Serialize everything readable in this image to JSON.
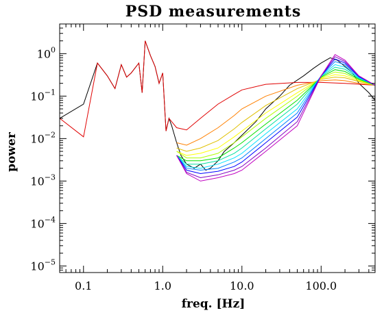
{
  "chart_data": {
    "type": "line",
    "title": "PSD measurements",
    "xlabel": "freq. [Hz]",
    "ylabel": "power",
    "xscale": "log",
    "yscale": "log",
    "xlim": [
      0.05,
      480
    ],
    "ylim": [
      7e-06,
      5
    ],
    "x_ticks": [
      {
        "value": 0.1,
        "label": "0.1"
      },
      {
        "value": 1.0,
        "label": "1.0"
      },
      {
        "value": 10.0,
        "label": "10.0"
      },
      {
        "value": 100.0,
        "label": "100.0"
      }
    ],
    "y_ticks": [
      {
        "value": 1,
        "base": "10",
        "exp": "0"
      },
      {
        "value": 0.1,
        "base": "10",
        "exp": "−1"
      },
      {
        "value": 0.01,
        "base": "10",
        "exp": "−2"
      },
      {
        "value": 0.001,
        "base": "10",
        "exp": "−3"
      },
      {
        "value": 0.0001,
        "base": "10",
        "exp": "−4"
      },
      {
        "value": 1e-05,
        "base": "10",
        "exp": "−5"
      }
    ],
    "grid": false,
    "series": [
      {
        "kind": "measured",
        "color": "#000000",
        "x": [
          0.05,
          0.1,
          0.15,
          0.2,
          0.25,
          0.3,
          0.35,
          0.4,
          0.5,
          0.55,
          0.6,
          0.7,
          0.8,
          0.9,
          1.0,
          1.1,
          1.2,
          1.3,
          1.5,
          1.7,
          2.0,
          2.5,
          3.0,
          3.5,
          4.0,
          5.0,
          6.0,
          8.0,
          10,
          15,
          20,
          30,
          40,
          60,
          80,
          100,
          130,
          160,
          200,
          250,
          300,
          400,
          480
        ],
        "y": [
          0.03,
          0.065,
          0.6,
          0.3,
          0.15,
          0.55,
          0.28,
          0.35,
          0.6,
          0.12,
          2.0,
          0.9,
          0.5,
          0.2,
          0.35,
          0.015,
          0.03,
          0.02,
          0.008,
          0.004,
          0.0025,
          0.002,
          0.0025,
          0.0018,
          0.002,
          0.003,
          0.005,
          0.008,
          0.012,
          0.025,
          0.05,
          0.1,
          0.18,
          0.3,
          0.45,
          0.6,
          0.8,
          0.7,
          0.5,
          0.35,
          0.2,
          0.12,
          0.08
        ]
      },
      {
        "kind": "model",
        "color": "#e00000",
        "x": [
          0.05,
          0.1,
          0.15,
          0.2,
          0.25,
          0.3,
          0.35,
          0.4,
          0.5,
          0.55,
          0.6,
          0.7,
          0.8,
          0.9,
          1.0,
          1.1,
          1.2,
          1.5,
          2.0,
          3.0,
          5.0,
          8.0,
          10,
          20,
          50,
          100,
          200,
          480
        ],
        "y": [
          0.03,
          0.011,
          0.6,
          0.3,
          0.15,
          0.55,
          0.28,
          0.35,
          0.6,
          0.12,
          2.0,
          0.9,
          0.5,
          0.2,
          0.35,
          0.015,
          0.03,
          0.018,
          0.016,
          0.03,
          0.065,
          0.11,
          0.14,
          0.19,
          0.21,
          0.21,
          0.2,
          0.18
        ]
      },
      {
        "kind": "model",
        "color": "#ff8000",
        "x": [
          1.5,
          2,
          3,
          5,
          8,
          10,
          20,
          50,
          100,
          150,
          200,
          300,
          480
        ],
        "y": [
          0.008,
          0.007,
          0.01,
          0.018,
          0.035,
          0.05,
          0.1,
          0.18,
          0.23,
          0.24,
          0.23,
          0.2,
          0.18
        ]
      },
      {
        "kind": "model",
        "color": "#e0c000",
        "x": [
          1.5,
          2,
          3,
          5,
          8,
          10,
          20,
          50,
          100,
          150,
          200,
          300,
          480
        ],
        "y": [
          0.006,
          0.005,
          0.006,
          0.009,
          0.017,
          0.024,
          0.06,
          0.15,
          0.25,
          0.28,
          0.27,
          0.22,
          0.18
        ]
      },
      {
        "kind": "model",
        "color": "#ffff00",
        "x": [
          1.5,
          2,
          3,
          5,
          8,
          10,
          20,
          50,
          100,
          150,
          200,
          300,
          480
        ],
        "y": [
          0.005,
          0.004,
          0.0045,
          0.006,
          0.011,
          0.015,
          0.04,
          0.12,
          0.26,
          0.32,
          0.3,
          0.23,
          0.18
        ]
      },
      {
        "kind": "model",
        "color": "#b0ff00",
        "x": [
          1.5,
          2,
          3,
          5,
          8,
          10,
          20,
          50,
          100,
          150,
          200,
          300,
          480
        ],
        "y": [
          0.005,
          0.0035,
          0.0035,
          0.0045,
          0.008,
          0.011,
          0.03,
          0.1,
          0.27,
          0.37,
          0.34,
          0.24,
          0.18
        ]
      },
      {
        "kind": "model",
        "color": "#00e000",
        "x": [
          1.5,
          2,
          3,
          5,
          8,
          10,
          20,
          50,
          100,
          150,
          200,
          300,
          480
        ],
        "y": [
          0.004,
          0.003,
          0.003,
          0.0035,
          0.006,
          0.008,
          0.022,
          0.08,
          0.28,
          0.42,
          0.38,
          0.25,
          0.18
        ]
      },
      {
        "kind": "model",
        "color": "#00e0a0",
        "x": [
          1.5,
          2,
          3,
          5,
          8,
          10,
          20,
          50,
          100,
          150,
          200,
          300,
          480
        ],
        "y": [
          0.004,
          0.0025,
          0.0025,
          0.003,
          0.0045,
          0.006,
          0.017,
          0.065,
          0.29,
          0.48,
          0.43,
          0.26,
          0.18
        ]
      },
      {
        "kind": "model",
        "color": "#00e0ff",
        "x": [
          1.5,
          2,
          3,
          5,
          8,
          10,
          20,
          50,
          100,
          150,
          200,
          300,
          480
        ],
        "y": [
          0.004,
          0.0022,
          0.002,
          0.0025,
          0.0035,
          0.0045,
          0.013,
          0.05,
          0.3,
          0.55,
          0.48,
          0.27,
          0.18
        ]
      },
      {
        "kind": "model",
        "color": "#0080ff",
        "x": [
          1.5,
          2,
          3,
          5,
          8,
          10,
          20,
          50,
          100,
          150,
          200,
          300,
          480
        ],
        "y": [
          0.004,
          0.002,
          0.0018,
          0.002,
          0.0028,
          0.0035,
          0.01,
          0.04,
          0.3,
          0.65,
          0.55,
          0.28,
          0.18
        ]
      },
      {
        "kind": "model",
        "color": "#0000ff",
        "x": [
          1.5,
          2,
          3,
          5,
          8,
          10,
          20,
          50,
          100,
          150,
          200,
          300,
          480
        ],
        "y": [
          0.004,
          0.0018,
          0.0015,
          0.0017,
          0.0022,
          0.0028,
          0.008,
          0.032,
          0.3,
          0.75,
          0.6,
          0.29,
          0.18
        ]
      },
      {
        "kind": "model",
        "color": "#8000c0",
        "x": [
          1.5,
          2,
          3,
          5,
          8,
          10,
          20,
          50,
          100,
          150,
          200,
          300,
          480
        ],
        "y": [
          0.004,
          0.0016,
          0.0012,
          0.0014,
          0.0018,
          0.0022,
          0.006,
          0.025,
          0.3,
          0.85,
          0.65,
          0.3,
          0.18
        ]
      },
      {
        "kind": "model",
        "color": "#c000c0",
        "x": [
          1.5,
          2,
          3,
          5,
          8,
          10,
          20,
          50,
          100,
          150,
          200,
          300,
          480
        ],
        "y": [
          0.004,
          0.0015,
          0.001,
          0.0012,
          0.0015,
          0.0018,
          0.005,
          0.02,
          0.3,
          0.95,
          0.7,
          0.3,
          0.18
        ]
      }
    ]
  }
}
